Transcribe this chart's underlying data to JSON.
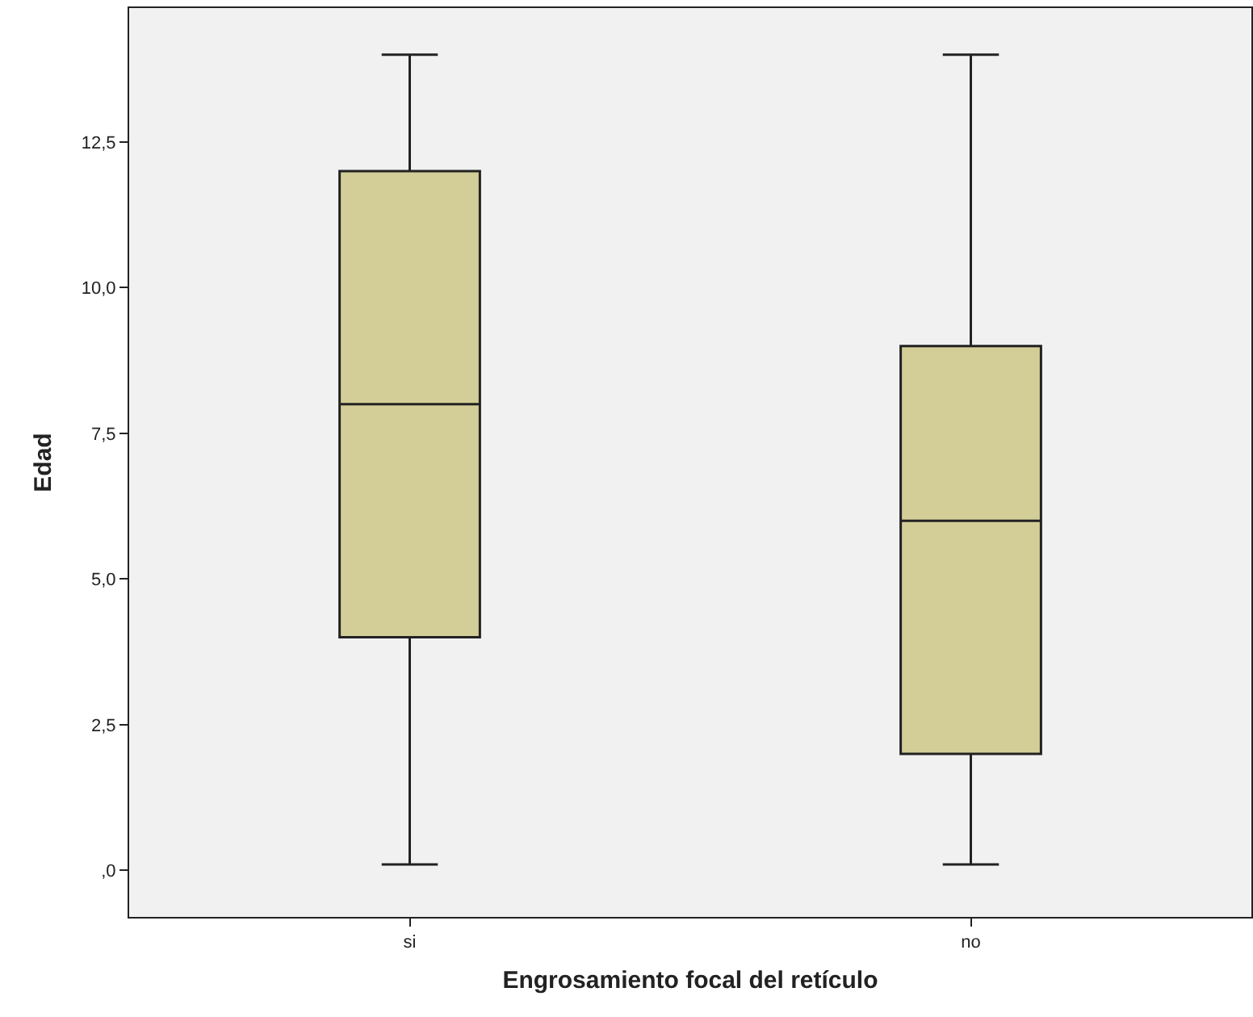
{
  "chart_data": {
    "type": "box",
    "xlabel": "Engrosamiento focal del retículo",
    "ylabel": "Edad",
    "categories": [
      "si",
      "no"
    ],
    "boxes": [
      {
        "low": 0.1,
        "q1": 4,
        "median": 8,
        "q3": 12,
        "high": 14
      },
      {
        "low": 0.1,
        "q1": 2,
        "median": 6,
        "q3": 9,
        "high": 14
      }
    ],
    "color": "#d3ce97",
    "ylim": [
      -0.8,
      14.8
    ],
    "yticks": [
      {
        "value": 0,
        "label": ",0"
      },
      {
        "value": 2.5,
        "label": "2,5"
      },
      {
        "value": 5,
        "label": "5,0"
      },
      {
        "value": 7.5,
        "label": "7,5"
      },
      {
        "value": 10,
        "label": "10,0"
      },
      {
        "value": 12.5,
        "label": "12,5"
      }
    ],
    "grid": false,
    "legend": false
  }
}
